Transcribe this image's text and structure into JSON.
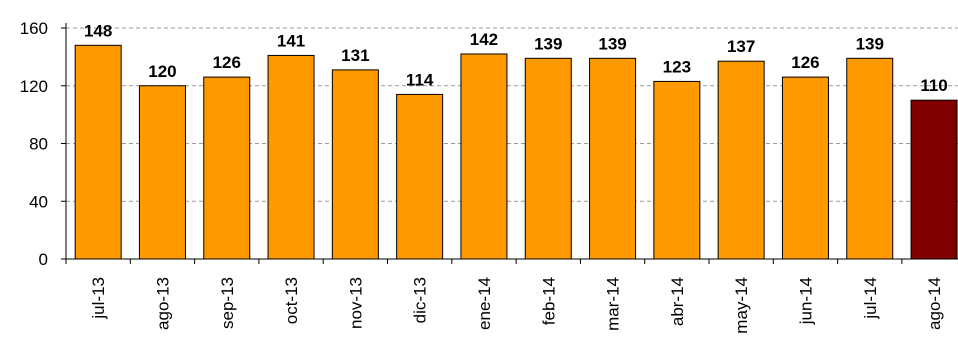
{
  "chart_data": {
    "type": "bar",
    "categories": [
      "jul-13",
      "ago-13",
      "sep-13",
      "oct-13",
      "nov-13",
      "dic-13",
      "ene-14",
      "feb-14",
      "mar-14",
      "abr-14",
      "may-14",
      "jun-14",
      "jul-14",
      "ago-14"
    ],
    "values": [
      148,
      120,
      126,
      141,
      131,
      114,
      142,
      139,
      139,
      123,
      137,
      126,
      139,
      110
    ],
    "data_labels": [
      "148",
      "120",
      "126",
      "141",
      "131",
      "114",
      "142",
      "139",
      "139",
      "123",
      "137",
      "126",
      "139",
      "110"
    ],
    "bar_colors": [
      "#ff9900",
      "#ff9900",
      "#ff9900",
      "#ff9900",
      "#ff9900",
      "#ff9900",
      "#ff9900",
      "#ff9900",
      "#ff9900",
      "#ff9900",
      "#ff9900",
      "#ff9900",
      "#ff9900",
      "#800000"
    ],
    "y_ticks": [
      0,
      40,
      80,
      120,
      160
    ],
    "ylim": [
      0,
      160
    ],
    "title": "",
    "xlabel": "",
    "ylabel": "",
    "grid": true,
    "grid_style": "dashed",
    "legend": "none",
    "bar_outline_color": "#000000"
  }
}
